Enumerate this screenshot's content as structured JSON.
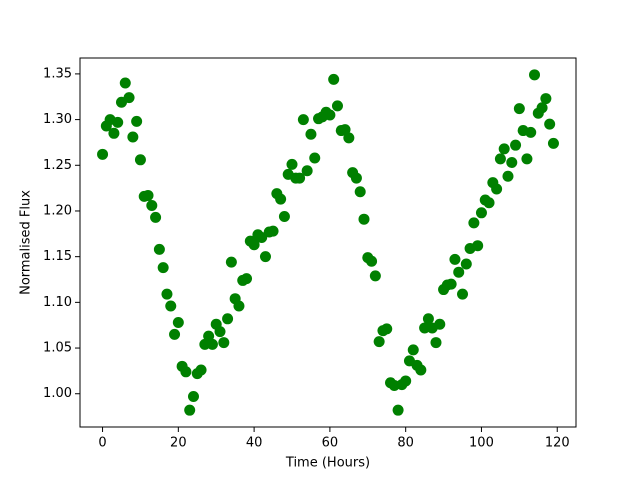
{
  "chart_data": {
    "type": "scatter",
    "xlabel": "Time (Hours)",
    "ylabel": "Normalised Flux",
    "color": "#008000",
    "x": [
      0,
      1,
      2,
      3,
      4,
      5,
      6,
      7,
      8,
      9,
      10,
      11,
      12,
      13,
      14,
      15,
      16,
      17,
      18,
      19,
      20,
      21,
      22,
      23,
      24,
      25,
      26,
      27,
      28,
      29,
      30,
      31,
      32,
      33,
      34,
      35,
      36,
      37,
      38,
      39,
      40,
      41,
      42,
      43,
      44,
      45,
      46,
      47,
      48,
      49,
      50,
      51,
      52,
      53,
      54,
      55,
      56,
      57,
      58,
      59,
      60,
      61,
      62,
      63,
      64,
      65,
      66,
      67,
      68,
      69,
      70,
      71,
      72,
      73,
      74,
      75,
      76,
      77,
      78,
      79,
      80,
      81,
      82,
      83,
      84,
      85,
      86,
      87,
      88,
      89,
      90,
      91,
      92,
      93,
      94,
      95,
      96,
      97,
      98,
      99,
      100,
      101,
      102,
      103,
      104,
      105,
      106,
      107,
      108,
      109,
      110,
      111,
      112,
      113,
      114,
      115,
      116,
      117,
      118,
      119
    ],
    "values": [
      1.262,
      1.293,
      1.3,
      1.285,
      1.297,
      1.319,
      1.34,
      1.324,
      1.281,
      1.298,
      1.256,
      1.216,
      1.217,
      1.206,
      1.193,
      1.158,
      1.138,
      1.109,
      1.096,
      1.065,
      1.078,
      1.03,
      1.024,
      0.982,
      0.997,
      1.022,
      1.026,
      1.054,
      1.063,
      1.054,
      1.076,
      1.068,
      1.056,
      1.082,
      1.144,
      1.104,
      1.096,
      1.124,
      1.126,
      1.167,
      1.163,
      1.174,
      1.171,
      1.15,
      1.177,
      1.178,
      1.219,
      1.213,
      1.194,
      1.24,
      1.251,
      1.236,
      1.236,
      1.3,
      1.244,
      1.284,
      1.258,
      1.301,
      1.303,
      1.308,
      1.305,
      1.344,
      1.315,
      1.288,
      1.289,
      1.28,
      1.242,
      1.236,
      1.221,
      1.191,
      1.149,
      1.145,
      1.129,
      1.057,
      1.069,
      1.071,
      1.012,
      1.009,
      0.982,
      1.01,
      1.014,
      1.036,
      1.048,
      1.031,
      1.026,
      1.072,
      1.082,
      1.072,
      1.056,
      1.076,
      1.114,
      1.119,
      1.12,
      1.147,
      1.133,
      1.109,
      1.142,
      1.159,
      1.187,
      1.162,
      1.198,
      1.212,
      1.209,
      1.231,
      1.224,
      1.257,
      1.268,
      1.238,
      1.253,
      1.272,
      1.312,
      1.288,
      1.257,
      1.286,
      1.349,
      1.307,
      1.313,
      1.323,
      1.295,
      1.274
    ],
    "xlim": [
      -5.95,
      124.95
    ],
    "ylim": [
      0.9636,
      1.3674
    ],
    "xticks": [
      0,
      20,
      40,
      60,
      80,
      100,
      120
    ],
    "yticks": [
      {
        "value": 1.0,
        "label": "1.00"
      },
      1.05,
      {
        "value": 1.1,
        "label": "1.10"
      },
      1.15,
      {
        "value": 1.2,
        "label": "1.20"
      },
      1.25,
      {
        "value": 1.3,
        "label": "1.30"
      },
      1.35
    ]
  }
}
